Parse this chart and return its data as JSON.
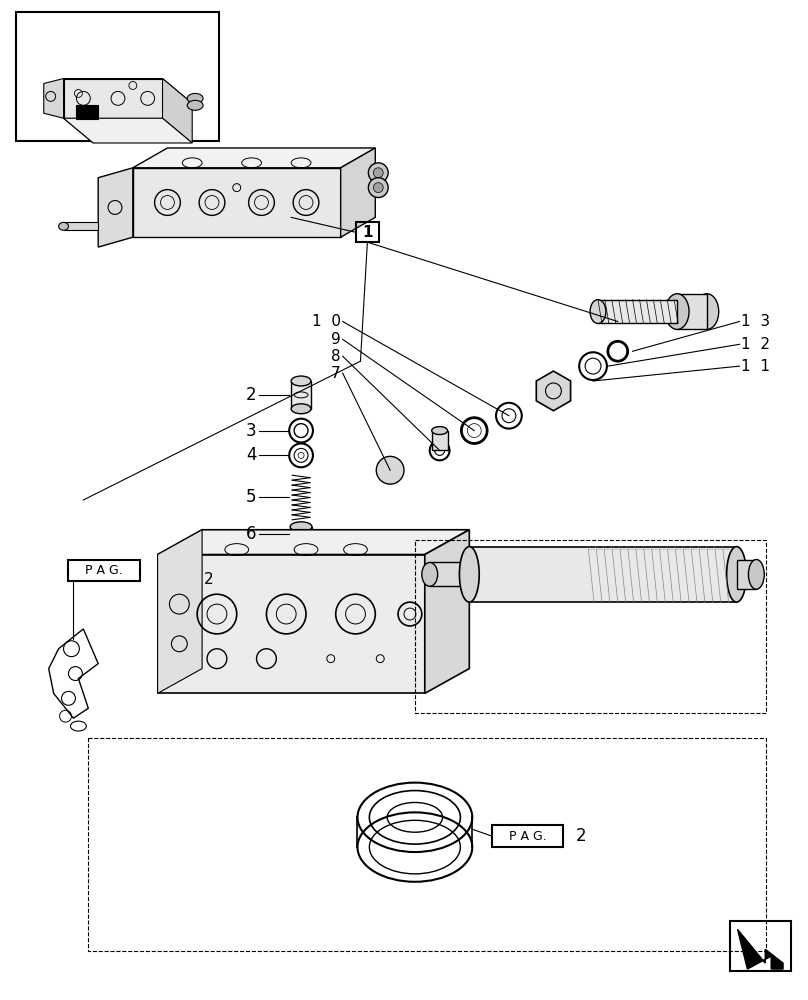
{
  "background_color": "#ffffff",
  "line_color": "#000000",
  "fig_width": 8.08,
  "fig_height": 10.0,
  "dpi": 100,
  "labels": {
    "part_numbers_left": [
      "2",
      "3",
      "4",
      "5",
      "6"
    ],
    "part_numbers_top_left": [
      "10",
      "9",
      "8",
      "7"
    ],
    "part_numbers_right": [
      "1 3",
      "1 2",
      "1 1"
    ],
    "item1_label": "1",
    "pag_label": "P A G.",
    "pag_num2": "2"
  }
}
